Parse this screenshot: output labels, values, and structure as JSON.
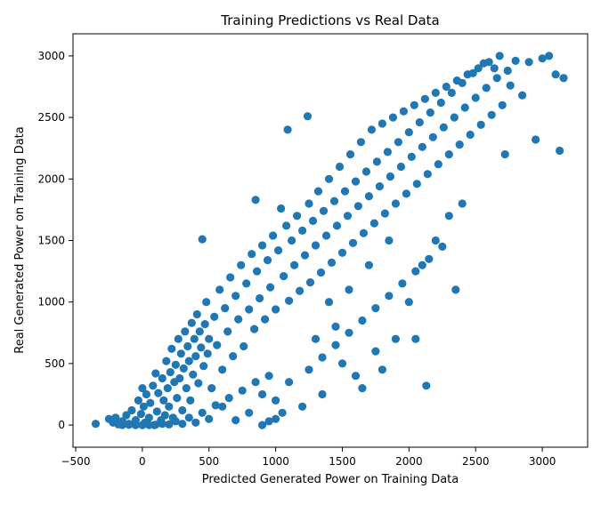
{
  "chart_data": {
    "type": "scatter",
    "title": "Training Predictions vs Real Data",
    "xlabel": "Predicted Generated Power on Training Data",
    "ylabel": "Real Generated Power on Training Data",
    "xlim": [
      -520,
      3340
    ],
    "ylim": [
      -180,
      3180
    ],
    "xticks": [
      -500,
      0,
      500,
      1000,
      1500,
      2000,
      2500,
      3000
    ],
    "yticks": [
      0,
      500,
      1000,
      1500,
      2000,
      2500,
      3000
    ],
    "xtick_labels": [
      "−500",
      "0",
      "500",
      "1000",
      "1500",
      "2000",
      "2500",
      "3000"
    ],
    "ytick_labels": [
      "0",
      "500",
      "1000",
      "1500",
      "2000",
      "2500",
      "3000"
    ],
    "grid": false,
    "marker_color": "#1f77b4",
    "series": [
      {
        "points": [
          [
            -350,
            10
          ],
          [
            -250,
            50
          ],
          [
            -220,
            20
          ],
          [
            -200,
            60
          ],
          [
            -180,
            5
          ],
          [
            -150,
            30
          ],
          [
            -120,
            80
          ],
          [
            -100,
            10
          ],
          [
            -80,
            120
          ],
          [
            -50,
            40
          ],
          [
            -30,
            200
          ],
          [
            -10,
            90
          ],
          [
            0,
            300
          ],
          [
            10,
            150
          ],
          [
            20,
            20
          ],
          [
            30,
            250
          ],
          [
            50,
            60
          ],
          [
            60,
            180
          ],
          [
            80,
            320
          ],
          [
            90,
            0
          ],
          [
            100,
            420
          ],
          [
            110,
            110
          ],
          [
            120,
            260
          ],
          [
            140,
            40
          ],
          [
            150,
            380
          ],
          [
            160,
            200
          ],
          [
            170,
            80
          ],
          [
            180,
            520
          ],
          [
            190,
            300
          ],
          [
            200,
            150
          ],
          [
            210,
            430
          ],
          [
            220,
            620
          ],
          [
            230,
            60
          ],
          [
            240,
            350
          ],
          [
            250,
            490
          ],
          [
            260,
            220
          ],
          [
            270,
            700
          ],
          [
            280,
            380
          ],
          [
            290,
            580
          ],
          [
            300,
            120
          ],
          [
            310,
            460
          ],
          [
            320,
            760
          ],
          [
            330,
            300
          ],
          [
            340,
            640
          ],
          [
            350,
            520
          ],
          [
            360,
            200
          ],
          [
            370,
            830
          ],
          [
            380,
            410
          ],
          [
            390,
            700
          ],
          [
            400,
            560
          ],
          [
            410,
            900
          ],
          [
            420,
            340
          ],
          [
            430,
            760
          ],
          [
            440,
            630
          ],
          [
            450,
            1510
          ],
          [
            460,
            480
          ],
          [
            470,
            820
          ],
          [
            480,
            1000
          ],
          [
            490,
            580
          ],
          [
            500,
            700
          ],
          [
            520,
            300
          ],
          [
            540,
            880
          ],
          [
            560,
            650
          ],
          [
            580,
            1100
          ],
          [
            600,
            450
          ],
          [
            620,
            950
          ],
          [
            640,
            760
          ],
          [
            660,
            1200
          ],
          [
            680,
            560
          ],
          [
            700,
            1050
          ],
          [
            720,
            860
          ],
          [
            740,
            1300
          ],
          [
            760,
            640
          ],
          [
            780,
            1150
          ],
          [
            800,
            940
          ],
          [
            820,
            1390
          ],
          [
            840,
            780
          ],
          [
            850,
            1830
          ],
          [
            860,
            1250
          ],
          [
            880,
            1030
          ],
          [
            900,
            1460
          ],
          [
            920,
            860
          ],
          [
            940,
            1340
          ],
          [
            960,
            1120
          ],
          [
            980,
            1540
          ],
          [
            1000,
            940
          ],
          [
            1020,
            1420
          ],
          [
            1040,
            1760
          ],
          [
            1060,
            1210
          ],
          [
            1080,
            1620
          ],
          [
            1090,
            2400
          ],
          [
            1100,
            1010
          ],
          [
            1120,
            1500
          ],
          [
            1140,
            1300
          ],
          [
            1160,
            1700
          ],
          [
            1180,
            1090
          ],
          [
            1200,
            1580
          ],
          [
            1220,
            1380
          ],
          [
            1240,
            2510
          ],
          [
            1250,
            1800
          ],
          [
            1260,
            1160
          ],
          [
            1280,
            1660
          ],
          [
            1300,
            1460
          ],
          [
            1320,
            1900
          ],
          [
            1340,
            1240
          ],
          [
            1360,
            1740
          ],
          [
            1380,
            1540
          ],
          [
            1400,
            2000
          ],
          [
            1420,
            1320
          ],
          [
            1440,
            1820
          ],
          [
            1460,
            1620
          ],
          [
            1480,
            2100
          ],
          [
            1500,
            1400
          ],
          [
            1520,
            1900
          ],
          [
            1540,
            1700
          ],
          [
            1560,
            2200
          ],
          [
            1580,
            1480
          ],
          [
            1600,
            1980
          ],
          [
            1620,
            1780
          ],
          [
            1640,
            2300
          ],
          [
            1660,
            1560
          ],
          [
            1680,
            2060
          ],
          [
            1700,
            1860
          ],
          [
            1720,
            2400
          ],
          [
            1740,
            1640
          ],
          [
            1760,
            2140
          ],
          [
            1780,
            1940
          ],
          [
            1800,
            2450
          ],
          [
            1820,
            1720
          ],
          [
            1840,
            2220
          ],
          [
            1860,
            2020
          ],
          [
            1880,
            2500
          ],
          [
            1900,
            1800
          ],
          [
            1920,
            2300
          ],
          [
            1940,
            2100
          ],
          [
            1960,
            2550
          ],
          [
            1980,
            1880
          ],
          [
            2000,
            2380
          ],
          [
            2020,
            2180
          ],
          [
            2040,
            2600
          ],
          [
            2060,
            1960
          ],
          [
            2080,
            2460
          ],
          [
            2100,
            2260
          ],
          [
            2120,
            2650
          ],
          [
            2130,
            320
          ],
          [
            2140,
            2040
          ],
          [
            2160,
            2540
          ],
          [
            2180,
            2340
          ],
          [
            2200,
            2700
          ],
          [
            2220,
            2120
          ],
          [
            2240,
            2620
          ],
          [
            2260,
            2420
          ],
          [
            2280,
            2750
          ],
          [
            2300,
            2200
          ],
          [
            2320,
            2700
          ],
          [
            2340,
            2500
          ],
          [
            2360,
            2800
          ],
          [
            2380,
            2280
          ],
          [
            2400,
            2780
          ],
          [
            2420,
            2580
          ],
          [
            2440,
            2850
          ],
          [
            2460,
            2360
          ],
          [
            2480,
            2860
          ],
          [
            2500,
            2660
          ],
          [
            2520,
            2900
          ],
          [
            2540,
            2440
          ],
          [
            2560,
            2940
          ],
          [
            2580,
            2740
          ],
          [
            2600,
            2950
          ],
          [
            2620,
            2520
          ],
          [
            2640,
            2900
          ],
          [
            2660,
            2820
          ],
          [
            2680,
            3000
          ],
          [
            2700,
            2600
          ],
          [
            2720,
            2200
          ],
          [
            2740,
            2880
          ],
          [
            2760,
            2760
          ],
          [
            2800,
            2960
          ],
          [
            2850,
            2680
          ],
          [
            2900,
            2950
          ],
          [
            2950,
            2320
          ],
          [
            3000,
            2980
          ],
          [
            3050,
            3000
          ],
          [
            3100,
            2850
          ],
          [
            3130,
            2230
          ],
          [
            3160,
            2820
          ],
          [
            1200,
            150
          ],
          [
            1350,
            250
          ],
          [
            1500,
            500
          ],
          [
            1600,
            400
          ],
          [
            1650,
            300
          ],
          [
            1750,
            600
          ],
          [
            1800,
            450
          ],
          [
            1900,
            700
          ],
          [
            2000,
            1000
          ],
          [
            2050,
            700
          ],
          [
            2100,
            1300
          ],
          [
            2200,
            1500
          ],
          [
            2300,
            1700
          ],
          [
            2350,
            1100
          ],
          [
            2400,
            1800
          ],
          [
            1300,
            700
          ],
          [
            1400,
            1000
          ],
          [
            1450,
            800
          ],
          [
            1550,
            1100
          ],
          [
            1700,
            1300
          ],
          [
            1850,
            1500
          ],
          [
            950,
            400
          ],
          [
            1000,
            200
          ],
          [
            1100,
            350
          ],
          [
            800,
            100
          ],
          [
            900,
            250
          ],
          [
            700,
            40
          ],
          [
            600,
            150
          ],
          [
            500,
            50
          ],
          [
            400,
            20
          ],
          [
            300,
            10
          ],
          [
            200,
            5
          ],
          [
            100,
            3
          ],
          [
            -50,
            0
          ],
          [
            -100,
            2
          ],
          [
            -150,
            1
          ],
          [
            0,
            0
          ],
          [
            50,
            1
          ],
          [
            150,
            10
          ],
          [
            250,
            30
          ],
          [
            350,
            60
          ],
          [
            450,
            100
          ],
          [
            550,
            160
          ],
          [
            650,
            220
          ],
          [
            750,
            280
          ],
          [
            850,
            350
          ],
          [
            900,
            0
          ],
          [
            950,
            30
          ],
          [
            1000,
            50
          ],
          [
            1050,
            100
          ],
          [
            1250,
            450
          ],
          [
            1350,
            550
          ],
          [
            1450,
            650
          ],
          [
            1550,
            750
          ],
          [
            1650,
            850
          ],
          [
            1750,
            950
          ],
          [
            1850,
            1050
          ],
          [
            1950,
            1150
          ],
          [
            2050,
            1250
          ],
          [
            2150,
            1350
          ],
          [
            2250,
            1450
          ]
        ]
      }
    ]
  }
}
